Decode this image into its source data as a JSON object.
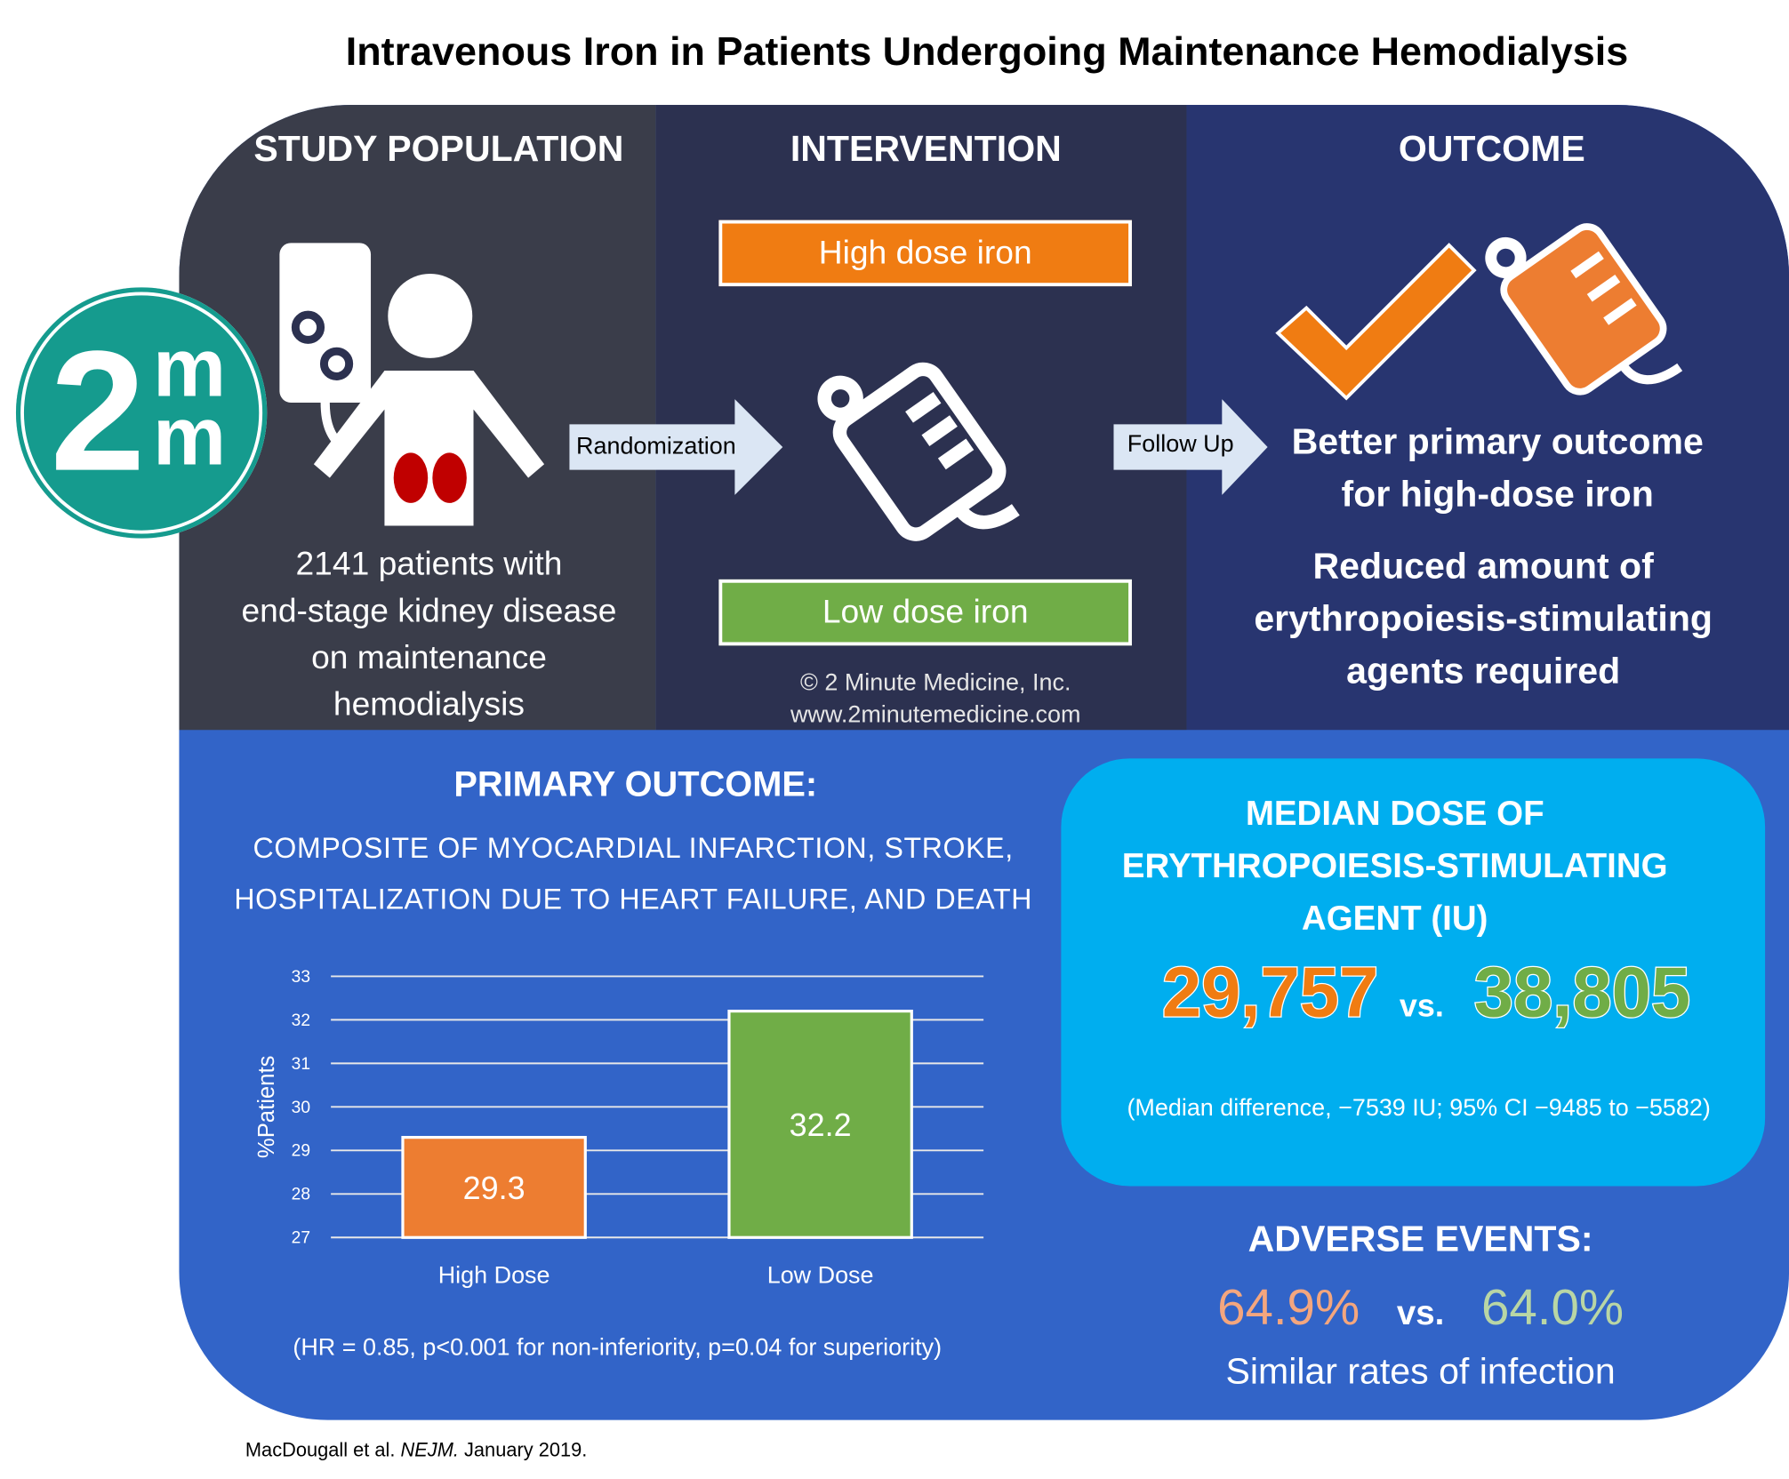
{
  "title": "Intravenous Iron in Patients Undergoing Maintenance Hemodialysis",
  "logo": {
    "text_main": "2",
    "text_top": "m",
    "text_bottom": "m",
    "color": "#159b8e"
  },
  "study_population": {
    "heading": "STUDY POPULATION",
    "lines": [
      "2141 patients with",
      "end-stage kidney disease",
      "on maintenance",
      "hemodialysis"
    ]
  },
  "intervention": {
    "heading": "INTERVENTION",
    "arm_high": "High dose iron",
    "arm_low": "Low dose iron",
    "arrow_label": "Randomization",
    "copyright": "© 2 Minute Medicine, Inc.",
    "website": "www.2minutemedicine.com"
  },
  "outcome": {
    "heading": "OUTCOME",
    "arrow_label": "Follow Up",
    "line1": "Better primary outcome",
    "line2": "for high-dose iron",
    "line3": "Reduced amount of",
    "line4": "erythropoiesis-stimulating",
    "line5": "agents required"
  },
  "primary": {
    "heading": "PRIMARY OUTCOME:",
    "sub1": "COMPOSITE OF MYOCARDIAL INFARCTION, STROKE,",
    "sub2": "HOSPITALIZATION DUE TO HEART FAILURE, AND DEATH",
    "stats": "(HR = 0.85, p<0.001 for non-inferiority, p=0.04 for superiority)"
  },
  "chart_data": {
    "type": "bar",
    "categories": [
      "High Dose",
      "Low Dose"
    ],
    "values": [
      29.3,
      32.2
    ],
    "value_labels": [
      "29.3",
      "32.2"
    ],
    "colors": [
      "#ed7d31",
      "#70ad47"
    ],
    "ylabel": "%Patients",
    "ylim": [
      27,
      33
    ],
    "yticks": [
      "27",
      "28",
      "29",
      "30",
      "31",
      "32",
      "33"
    ],
    "grid": true
  },
  "median_dose": {
    "heading1": "MEDIAN DOSE OF",
    "heading2": "ERYTHROPOIESIS-STIMULATING",
    "heading3": "AGENT (IU)",
    "high": "29,757",
    "vs": "vs.",
    "low": "38,805",
    "note": "(Median difference, −7539 IU; 95% CI −9485 to −5582)"
  },
  "adverse": {
    "heading": "ADVERSE EVENTS:",
    "high": "64.9%",
    "vs": "vs.",
    "low": "64.0%",
    "note": "Similar rates of infection"
  },
  "citation": {
    "authors": "MacDougall et al.",
    "journal": "NEJM.",
    "date": "January 2019."
  }
}
